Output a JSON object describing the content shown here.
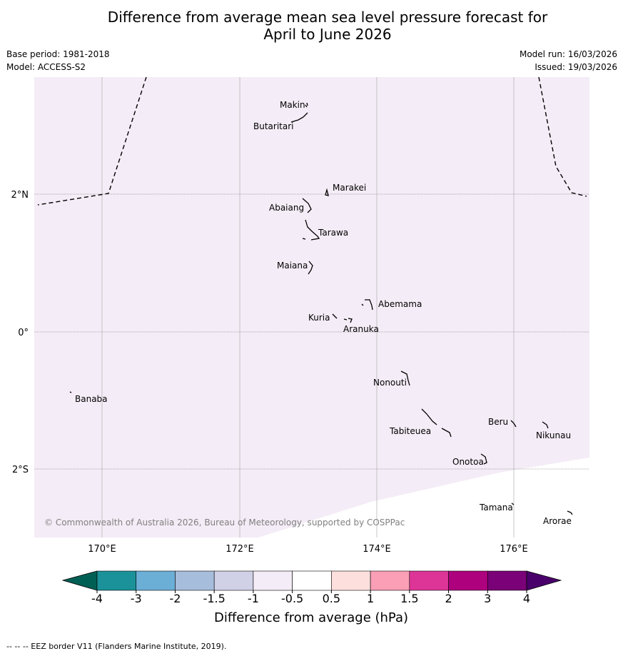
{
  "title_line1": "Difference from average mean sea level pressure forecast for",
  "title_line2": "April to June 2026",
  "base_period": "Base period: 1981-2018",
  "model": "Model: ACCESS-S2",
  "model_run": "Model run: 16/03/2026",
  "issued": "Issued: 19/03/2026",
  "lat_labels": [
    "2°N",
    "0°",
    "2°S"
  ],
  "lon_labels": [
    "170°E",
    "172°E",
    "174°E",
    "176°E"
  ],
  "places": [
    "Makin",
    "Butaritari",
    "Marakei",
    "Abaiang",
    "Tarawa",
    "Maiana",
    "Abemama",
    "Kuria",
    "Aranuka",
    "Nonouti",
    "Banaba",
    "Tabiteuea",
    "Beru",
    "Nikunau",
    "Onotoa",
    "Tamana",
    "Arorae"
  ],
  "copyright": "© Commonwealth of Australia 2026, Bureau of Meteorology, supported by COSPPac",
  "colorbar": {
    "ticks": [
      "-4",
      "-3",
      "-2",
      "-1.5",
      "-1",
      "-0.5",
      "0.5",
      "1",
      "1.5",
      "2",
      "3",
      "4"
    ],
    "colors": [
      "#005f55",
      "#1b9299",
      "#6baed6",
      "#a6bddb",
      "#d0d1e6",
      "#f4ecf6",
      "#ffffff",
      "#fde0dd",
      "#fa9fb5",
      "#dd3497",
      "#ae017e",
      "#7a0177",
      "#49006a"
    ],
    "label": "Difference from average (hPa)"
  },
  "map_fill_color": "#f4ecf6",
  "footer": "--  --  -- EEZ border V11 (Flanders Marine Institute, 2019)."
}
